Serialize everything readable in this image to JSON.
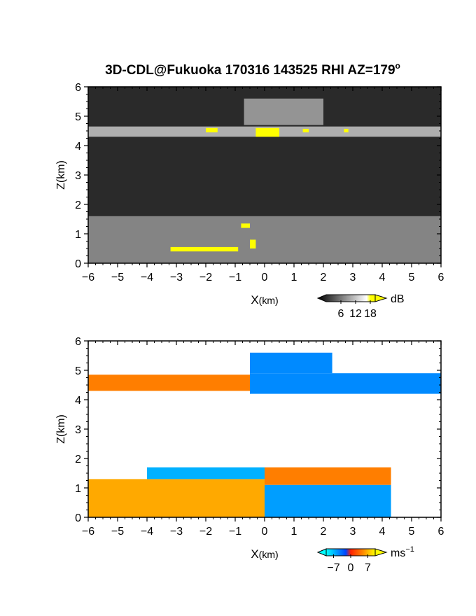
{
  "title_main": "3D-CDL@Fukuoka 170316 143525 RHI AZ=179",
  "title_degree": "o",
  "chart_data": [
    {
      "type": "heatmap",
      "panel": "backscatter",
      "xlabel_main": "X",
      "xlabel_unit": "(km)",
      "ylabel": "Z(km)",
      "xlim": [
        -6,
        6
      ],
      "ylim": [
        0,
        6
      ],
      "xticks": [
        "−6",
        "−5",
        "−4",
        "−3",
        "−2",
        "−1",
        "0",
        "1",
        "2",
        "3",
        "4",
        "5",
        "6"
      ],
      "yticks": [
        "0",
        "1",
        "2",
        "3",
        "4",
        "5",
        "6"
      ],
      "colorbar": {
        "unit": "dB",
        "ticks": [
          "6",
          "12",
          "18"
        ],
        "tick_values": [
          6,
          12,
          18
        ],
        "range": [
          0,
          20
        ],
        "colors": [
          "#000000",
          "#ffffff",
          "#ffff00"
        ],
        "saturation_color": "#ffff00"
      },
      "layers": [
        {
          "x0": -6,
          "x1": 6,
          "z0": 4.3,
          "z1": 4.65,
          "value": 14
        },
        {
          "x0": -0.7,
          "x1": 2.0,
          "z0": 4.7,
          "z1": 5.6,
          "value": 11
        },
        {
          "x0": -6,
          "x1": 6,
          "z0": 0,
          "z1": 1.6,
          "value": 9
        }
      ],
      "saturation_patches": [
        {
          "x": -2.0,
          "z": 4.45,
          "w": 0.4,
          "h": 0.15
        },
        {
          "x": -0.3,
          "z": 4.3,
          "w": 0.8,
          "h": 0.3
        },
        {
          "x": 1.3,
          "z": 4.45,
          "w": 0.2,
          "h": 0.12
        },
        {
          "x": 2.7,
          "z": 4.45,
          "w": 0.15,
          "h": 0.12
        },
        {
          "x": -0.8,
          "z": 1.2,
          "w": 0.3,
          "h": 0.15
        },
        {
          "x": -0.5,
          "z": 0.5,
          "w": 0.2,
          "h": 0.3
        },
        {
          "x": -3.2,
          "z": 0.4,
          "w": 2.3,
          "h": 0.15
        }
      ]
    },
    {
      "type": "heatmap",
      "panel": "radial velocity",
      "xlabel_main": "X",
      "xlabel_unit": "(km)",
      "ylabel": "Z(km)",
      "xlim": [
        -6,
        6
      ],
      "ylim": [
        0,
        6
      ],
      "xticks": [
        "−6",
        "−5",
        "−4",
        "−3",
        "−2",
        "−1",
        "0",
        "1",
        "2",
        "3",
        "4",
        "5",
        "6"
      ],
      "yticks": [
        "0",
        "1",
        "2",
        "3",
        "4",
        "5",
        "6"
      ],
      "colorbar": {
        "unit": "ms",
        "unit_exp": "−1",
        "ticks": [
          "−7",
          "0",
          "7"
        ],
        "tick_values": [
          -7,
          0,
          7
        ],
        "range": [
          -10,
          10
        ],
        "colors": [
          "#00ffff",
          "#0000ff",
          "#ff0000",
          "#ffff00"
        ]
      },
      "regions": [
        {
          "x0": -6,
          "x1": -0.5,
          "z0": 4.3,
          "z1": 4.85,
          "value": 4
        },
        {
          "x0": -0.5,
          "x1": 6,
          "z0": 4.2,
          "z1": 4.9,
          "value": -4
        },
        {
          "x0": -0.5,
          "x1": 2.3,
          "z0": 4.9,
          "z1": 5.6,
          "value": -4
        },
        {
          "x0": -6,
          "x1": 0,
          "z0": 0,
          "z1": 1.3,
          "value": 6
        },
        {
          "x0": -4,
          "x1": 0,
          "z0": 1.3,
          "z1": 1.7,
          "value": -6
        },
        {
          "x0": 0,
          "x1": 4.3,
          "z0": 1.1,
          "z1": 1.7,
          "value": 4
        },
        {
          "x0": 0,
          "x1": 4.3,
          "z0": 0,
          "z1": 1.1,
          "value": -5
        }
      ]
    }
  ]
}
